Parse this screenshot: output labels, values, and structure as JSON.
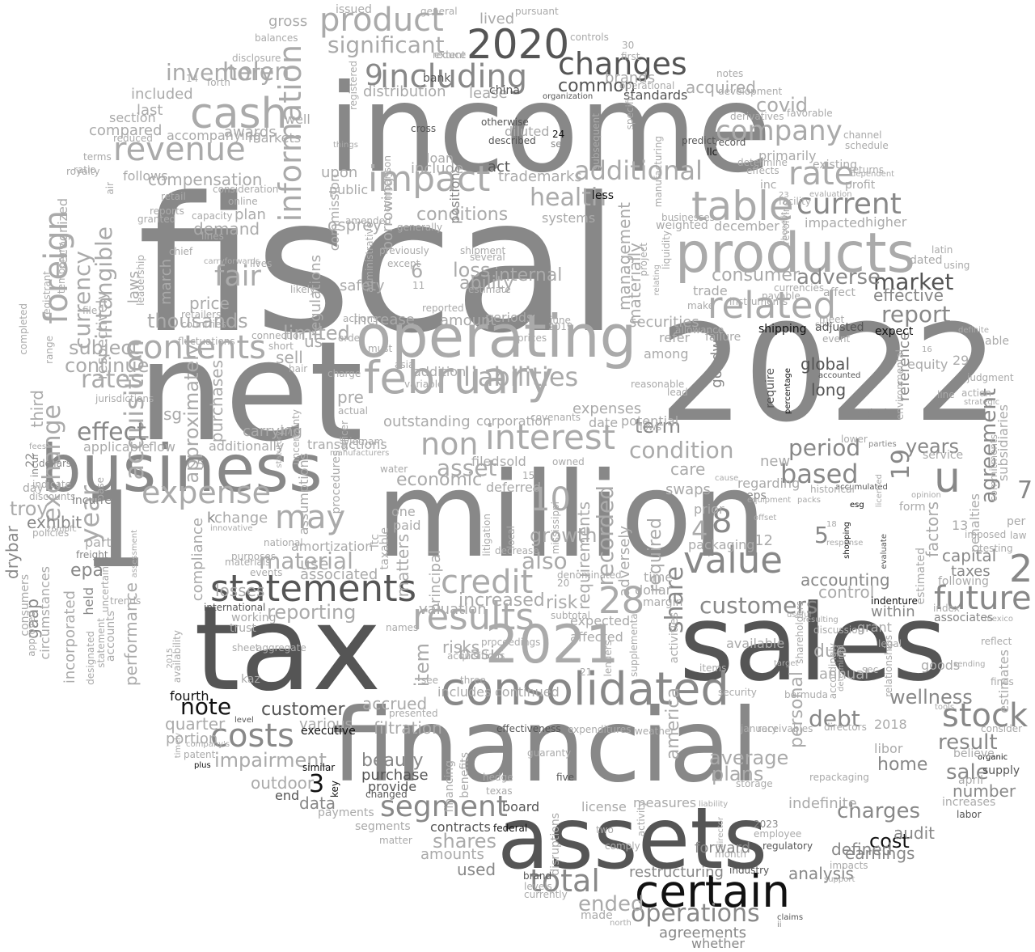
{
  "words": [
    "fiscal",
    "income",
    "net",
    "2022",
    "million",
    "tax",
    "sales",
    "financial",
    "assets",
    "business",
    "1",
    "operating",
    "products",
    "certain",
    "consolidated",
    "2021",
    "statements",
    "february",
    "related",
    "revenue",
    "cash",
    "information",
    "foreign",
    "value",
    "non",
    "interest",
    "results",
    "impact",
    "table",
    "2020",
    "including",
    "product",
    "changes",
    "additional",
    "rate",
    "company",
    "current",
    "future",
    "stock",
    "costs",
    "segment",
    "total",
    "operations",
    "credit",
    "acquisition",
    "exchange",
    "year",
    "intangible",
    "currency",
    "contents",
    "expense",
    "fair",
    "may",
    "limited",
    "material",
    "reporting",
    "customers",
    "market",
    "report",
    "based",
    "agreement",
    "u",
    "2",
    "note",
    "customer",
    "share",
    "condition",
    "period",
    "years",
    "debt",
    "charges",
    "cost",
    "wellness",
    "result",
    "sale",
    "liabilities",
    "28",
    "10",
    "8",
    "4",
    "3",
    "5",
    "6",
    "7",
    "9",
    "19",
    "helen",
    "inventory",
    "significant",
    "covid",
    "health",
    "conditions",
    "osprey",
    "term",
    "asset",
    "economic",
    "growth",
    "also",
    "recorded",
    "requirements",
    "required",
    "management",
    "materially",
    "adverse",
    "consumer",
    "effective",
    "personal",
    "america",
    "average",
    "plans",
    "home",
    "number",
    "defined",
    "audit",
    "earnings",
    "analysis",
    "restructuring",
    "agreements",
    "whether",
    "ended",
    "shares",
    "amounts",
    "used",
    "beauty",
    "purchase",
    "provide",
    "data",
    "outdoor",
    "impairment",
    "effect",
    "rates",
    "subject",
    "continue",
    "troy",
    "epa",
    "exhibit",
    "gaap",
    "drybar",
    "performance",
    "quarter",
    "portion",
    "fourth",
    "end",
    "various",
    "executive",
    "key",
    "similar",
    "changed",
    "filtration",
    "accrued",
    "includes",
    "continued",
    "basis",
    "risks",
    "item",
    "increased",
    "risk",
    "valuation",
    "principal",
    "matters",
    "one",
    "paid",
    "taxable",
    "itc",
    "pre",
    "actual",
    "officer",
    "procedures",
    "assumptions",
    "kaz",
    "sheet",
    "aggregate",
    "trust",
    "working",
    "international",
    "losses",
    "compliance",
    "associated",
    "use",
    "amortization",
    "change",
    "k",
    "demand",
    "price",
    "march",
    "approximately",
    "thousands",
    "us",
    "sell",
    "securities",
    "amount",
    "increase",
    "loss",
    "ability",
    "internal",
    "safety",
    "periods",
    "regulations",
    "commission",
    "laws",
    "respectively",
    "recognized",
    "incorporated",
    "third",
    "applicable",
    "flow",
    "additionally",
    "transactions",
    "outstanding",
    "corporation",
    "filed",
    "sold",
    "deferred",
    "expenses",
    "potential",
    "date",
    "addition",
    "carrying",
    "sg",
    "purchases",
    "compensation",
    "plan",
    "demand",
    "awards",
    "included",
    "last",
    "compared",
    "follows",
    "section",
    "accompanying",
    "markets",
    "well",
    "upon",
    "public",
    "include",
    "borrowings",
    "positions",
    "act",
    "trademarks",
    "common",
    "distribution",
    "acquired",
    "standards",
    "brands",
    "lived",
    "gross",
    "issued",
    "lease",
    "bank",
    "china",
    "diluted",
    "described",
    "otherwise",
    "loan",
    "cross",
    "24",
    "set",
    "systems",
    "less",
    "consumer",
    "weighted",
    "december",
    "inc",
    "existing",
    "profit",
    "primarily",
    "impacted",
    "higher",
    "dated",
    "trade",
    "goodwill",
    "global",
    "long",
    "require",
    "accounted",
    "29",
    "equity",
    "reference",
    "chain",
    "service",
    "new",
    "regarding",
    "eps",
    "12",
    "prior",
    "packaging",
    "swaps",
    "care",
    "among",
    "refer",
    "time",
    "dollar",
    "margin",
    "adversely",
    "expected",
    "affected",
    "supplemental",
    "activities",
    "available",
    "due",
    "annual",
    "accounting",
    "control",
    "within",
    "grant",
    "associates",
    "capital",
    "taxes",
    "following",
    "factors",
    "13",
    "estimated",
    "penalties",
    "form",
    "accumulated",
    "esg",
    "shopping",
    "evaluate",
    "organic",
    "supply",
    "april",
    "libor",
    "2018",
    "directors",
    "receivables",
    "january",
    "security",
    "items",
    "goods",
    "sending",
    "reflect",
    "estimates",
    "fines",
    "subsidiaries",
    "law",
    "per",
    "consider",
    "believe",
    "increases",
    "labor",
    "remaining",
    "limited",
    "ii",
    "claims",
    "north",
    "made",
    "comply",
    "two",
    "month",
    "industry",
    "regulatory",
    "employee",
    "2023",
    "forward",
    "director",
    "liability",
    "activity",
    "storage",
    "repackaging",
    "indefinite",
    "license",
    "measures",
    "guaranty",
    "five",
    "hedge",
    "texas",
    "financing",
    "benefits",
    "board",
    "contracts",
    "federal",
    "segments",
    "payments",
    "matter",
    "disruptions",
    "brand",
    "levels",
    "currently",
    "lenders",
    "21",
    "proceedings",
    "acquisitions",
    "three",
    "see",
    "presented",
    "effectiveness",
    "expenditures",
    "weather",
    "age",
    "patent",
    "plus",
    "timely",
    "company's",
    "level",
    "statement",
    "accounts",
    "designated",
    "trends",
    "uncertain",
    "freight",
    "held",
    "part",
    "circumstances",
    "consumers",
    "policies",
    "discounts",
    "dollars",
    "indicate",
    "day",
    "base",
    "approved",
    "incurred",
    "22",
    "incur",
    "26mbfc",
    "fees",
    "jurisdictions",
    "countries",
    "retailers",
    "fluctuations",
    "connection",
    "short",
    "hair",
    "uncertainty",
    "charge",
    "asia",
    "variable",
    "covenants",
    "owned",
    "15",
    "mississippi",
    "litigation",
    "local",
    "denominated",
    "decrease",
    "subtotal",
    "names",
    "20",
    "2019",
    "prices",
    "june",
    "actions",
    "order",
    "must",
    "vietnam",
    "reported",
    "11",
    "estimate",
    "shipment",
    "several",
    "except",
    "previously",
    "amended",
    "generally",
    "administrative",
    "project",
    "liquidity",
    "operational",
    "specific",
    "subsequent",
    "manufacturing",
    "predict",
    "record",
    "llc",
    "channel",
    "schedule",
    "returns",
    "dependent",
    "favorable",
    "development",
    "notes",
    "derivatives",
    "determine",
    "effects",
    "revolving",
    "facility",
    "23",
    "benefit",
    "evaluation",
    "businesses",
    "relating",
    "allowance",
    "make",
    "instruments",
    "currencies",
    "payable",
    "affect",
    "meet",
    "core",
    "event",
    "shipping",
    "adjusted",
    "expect",
    "able",
    "judgment",
    "16",
    "line",
    "action",
    "strategic",
    "definite",
    "latin",
    "percentage",
    "environmental",
    "using",
    "lower",
    "parties",
    "licensed",
    "opinion",
    "commitments",
    "response",
    "18",
    "index",
    "testing",
    "imposed",
    "shareholders",
    "indenture",
    "mexico",
    "useful",
    "discussion",
    "resulting",
    "accordingly",
    "determined",
    "relationships",
    "legal",
    "sec",
    "tools",
    "target",
    "bermuda",
    "impacts",
    "support",
    "whether",
    "first",
    "30",
    "reduce",
    "extent",
    "pursuant",
    "controls",
    "general",
    "balances",
    "disclosure",
    "forth",
    "14",
    "registered",
    "organization",
    "comparison",
    "things",
    "reduced",
    "terms",
    "ratio",
    "royalty",
    "air",
    "retail",
    "granted",
    "online",
    "consideration",
    "reports",
    "lines",
    "chief",
    "leadership",
    "carryforwards",
    "temporary",
    "registrant",
    "lives",
    "file",
    "range",
    "completed",
    "capacity",
    "likely",
    "innovative",
    "national",
    "materials",
    "purposes",
    "events",
    "availability",
    "assessment",
    "2015",
    "statutory",
    "manufacturers",
    "water",
    "17",
    "25",
    "sg",
    "offset",
    "cause",
    "historical",
    "packs",
    "failure",
    "reasonable",
    "lead",
    "flows",
    "equipment",
    "regarding",
    "sold"
  ],
  "colors": {
    "background": "#ffffff",
    "darkest": "#111111",
    "dark": "#555555",
    "mid": "#888888",
    "light": "#aaaaaa",
    "lightest": "#cccccc"
  }
}
